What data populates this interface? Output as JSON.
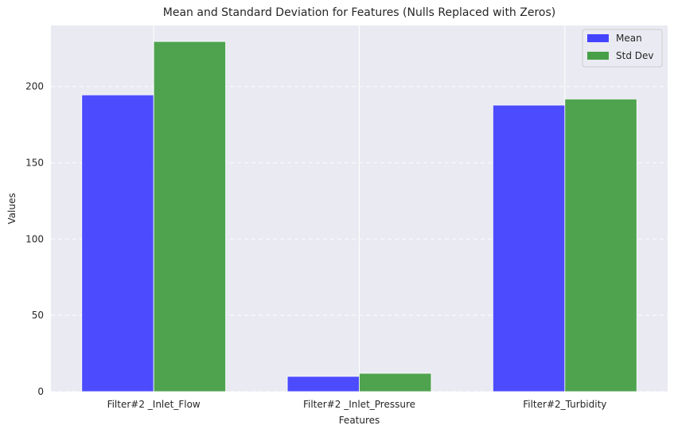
{
  "chart_data": {
    "type": "bar",
    "title": "Mean and Standard Deviation for Features (Nulls Replaced with Zeros)",
    "xlabel": "Features",
    "ylabel": "Values",
    "categories": [
      "Filter#2 _Inlet_Flow",
      "Filter#2 _Inlet_Pressure",
      "Filter#2_Turbidity"
    ],
    "series": [
      {
        "name": "Mean",
        "values": [
          194.5,
          10.0,
          187.8
        ],
        "color": "#4444ff"
      },
      {
        "name": "Std Dev",
        "values": [
          229.5,
          12.0,
          191.8
        ],
        "color": "#47a047"
      }
    ],
    "ylim": [
      0,
      240
    ],
    "yticks": [
      0,
      50,
      100,
      150,
      200
    ],
    "grid": true,
    "legend": "top-right",
    "background_color": "#eaeaf2",
    "grid_color": "#ffffff"
  }
}
